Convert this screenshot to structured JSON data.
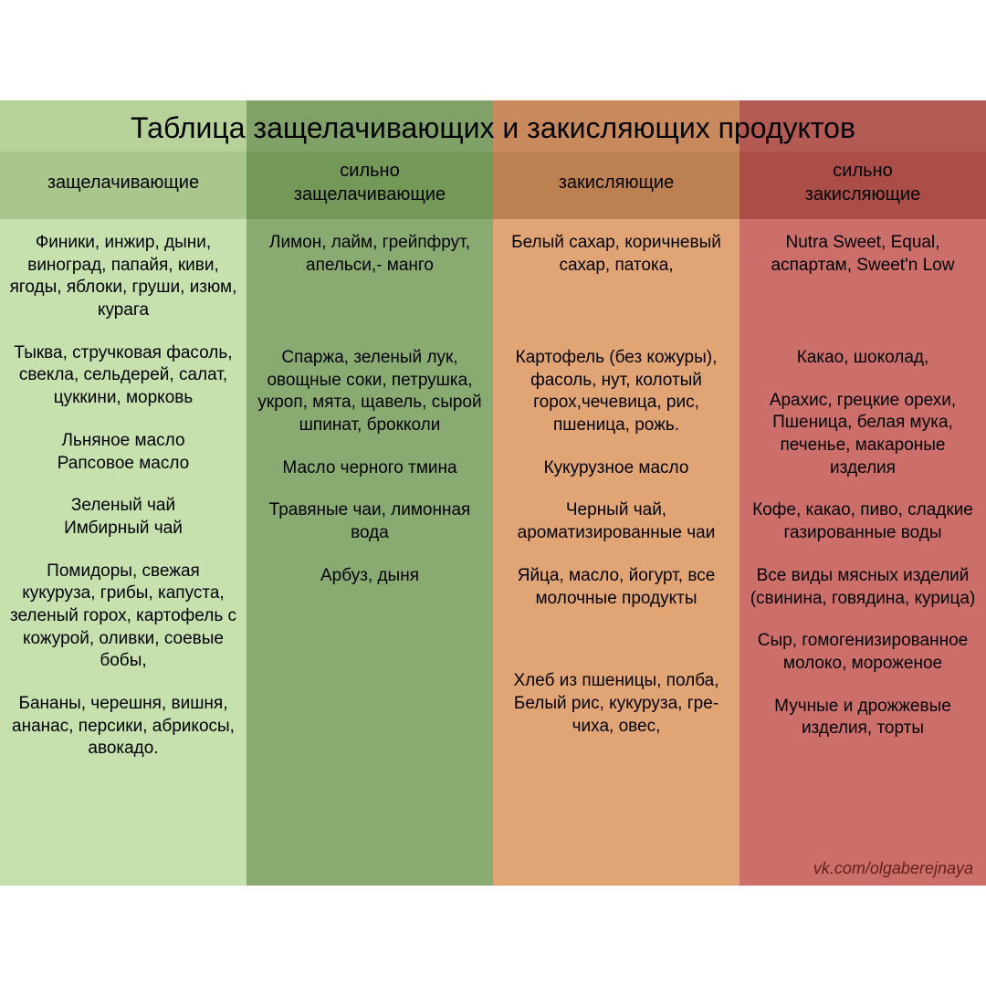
{
  "title": "Таблица защелачивающих и закисляющих продуктов",
  "title_fontsize": 32,
  "body_fontsize": 19,
  "header_fontsize": 20,
  "text_color": "#000000",
  "credit": "vk.com/olgaberejnaya",
  "credit_color": "#63211f",
  "columns": [
    {
      "header": "защелачивающие",
      "title_bg": "#b7d19a",
      "header_bg": "#a9c68c",
      "body_bg": "#c6e0ae",
      "cells": [
        "Финики, инжир, дыни, виноград, папайя, киви, ягоды, яблоки, груши, изюм, курага",
        "Тыква, стручковая фасоль, свекла, сельдерей, салат, цуккини, морковь",
        "Льняное масло\nРапсовое масло",
        "Зеленый чай\nИмбирный чай",
        "Помидоры, свежая кукуруза, грибы, капуста, зеленый горох, картофель с кожурой, оливки, соевые бобы,",
        "Бананы, черешня, вишня, ананас, персики, абрикосы, авокадо."
      ]
    },
    {
      "header": "сильно\nзащелачивающие",
      "title_bg": "#80a168",
      "header_bg": "#749858",
      "body_bg": "#89aa70",
      "cells": [
        "Лимон, лайм, грейпфрут, апельси,- манго",
        "Спаржа, зеленый лук, овощные соки, петрушка, укроп, мята, щавель, сырой шпинат, брокколи",
        "Масло черного тмина",
        "Травяные чаи, лимонная вода",
        "Арбуз, дыня"
      ]
    },
    {
      "header": "закисляющие",
      "title_bg": "#c8895c",
      "header_bg": "#bd8050",
      "body_bg": "#e1a475",
      "cells": [
        "Белый сахар, коричневый сахар, патока,",
        "Картофель (без кожуры), фасоль, нут, колотый горох,чечевица, рис, пшеница, рожь.",
        "Кукурузное масло",
        "Черный чай, ароматизированные чаи",
        "Яйца, масло, йогурт, все молочные продукты",
        "",
        "Хлеб из пшеницы, полба, Белый рис, кукуруза, гре- чиха, овес,"
      ]
    },
    {
      "header": "сильно\nзакисляющие",
      "title_bg": "#b45a54",
      "header_bg": "#ab4e47",
      "body_bg": "#cc6e6a",
      "cells": [
        "Nutra Sweet, Equal, аспартам, Sweet'n Low",
        "Какао, шоколад,",
        "Арахис, грецкие орехи, Пшеница, белая мука, печенье, макароные изделия",
        "Кофе, какао, пиво, сладкие газированные воды",
        "Все виды мясных изделий (свинина, говядина, курица)",
        "Сыр, гомогенизированное молоко, мороженое",
        "Мучные и дрожжевые изделия, торты"
      ]
    }
  ]
}
